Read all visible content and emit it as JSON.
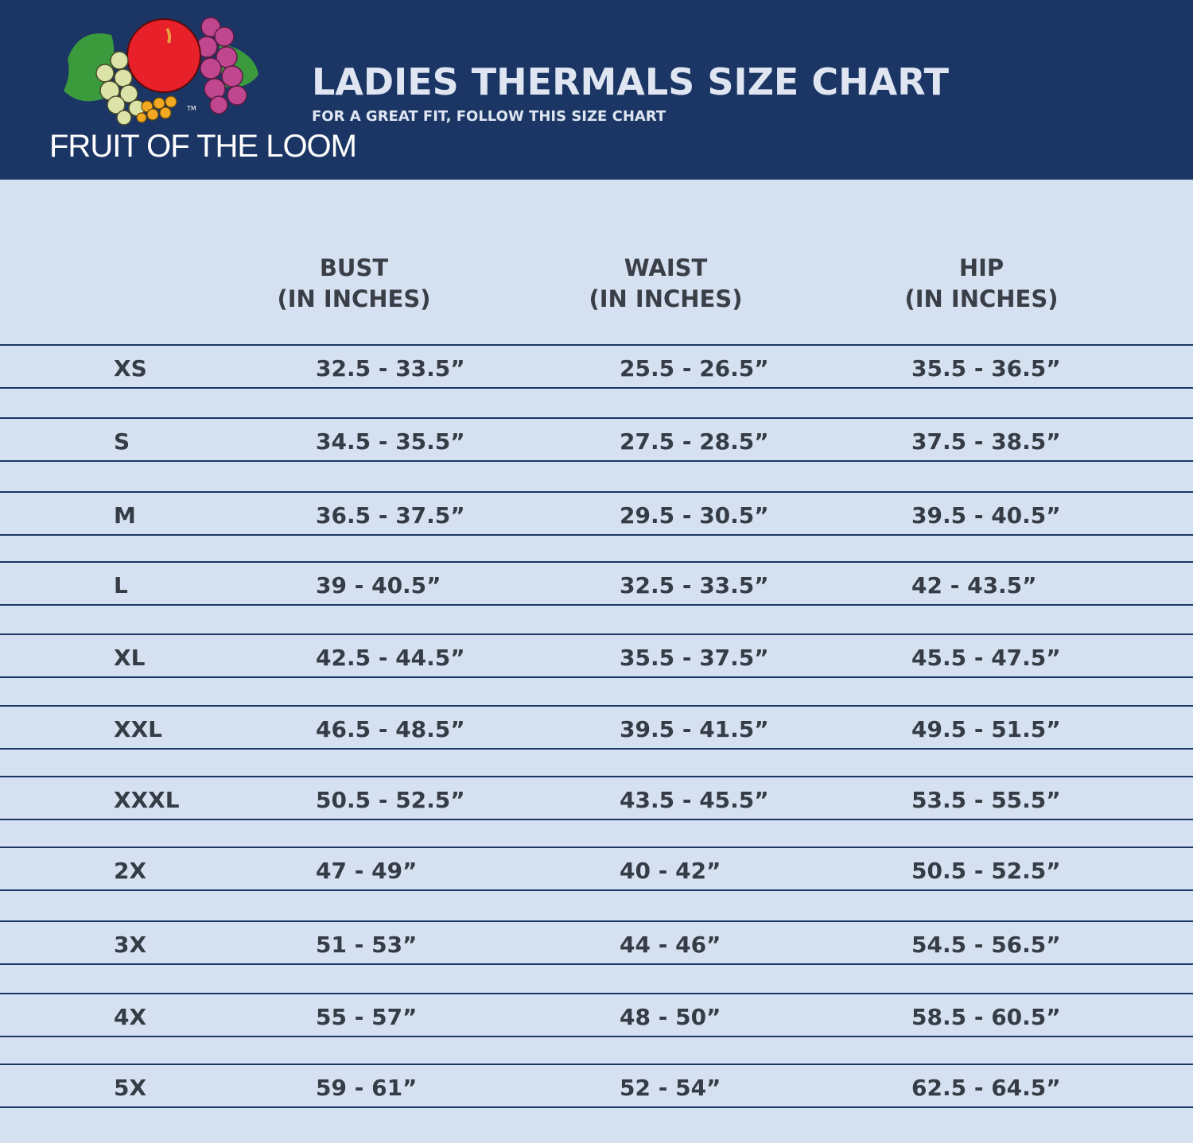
{
  "header": {
    "brand": "FRUIT OF THE LOOM",
    "title": "LADIES THERMALS SIZE CHART",
    "subtitle": "FOR A GREAT FIT, FOLLOW THIS SIZE CHART",
    "bg_color": "#1b3664"
  },
  "table": {
    "columns": [
      {
        "line1": "BUST",
        "line2": "(IN INCHES)"
      },
      {
        "line1": "WAIST",
        "line2": "(IN INCHES)"
      },
      {
        "line1": "HIP",
        "line2": "(IN INCHES)"
      }
    ],
    "rows": [
      {
        "size": "XS",
        "bust": "32.5 - 33.5”",
        "waist": "25.5 - 26.5”",
        "hip": "35.5 - 36.5”"
      },
      {
        "size": "S",
        "bust": "34.5 - 35.5”",
        "waist": "27.5 - 28.5”",
        "hip": "37.5 - 38.5”"
      },
      {
        "size": "M",
        "bust": "36.5 - 37.5”",
        "waist": "29.5 - 30.5”",
        "hip": "39.5 - 40.5”"
      },
      {
        "size": "L",
        "bust": "39 - 40.5”",
        "waist": "32.5 - 33.5”",
        "hip": "42 - 43.5”"
      },
      {
        "size": "XL",
        "bust": "42.5 - 44.5”",
        "waist": "35.5 - 37.5”",
        "hip": "45.5 - 47.5”"
      },
      {
        "size": "XXL",
        "bust": "46.5 - 48.5”",
        "waist": "39.5 - 41.5”",
        "hip": "49.5 - 51.5”"
      },
      {
        "size": "XXXL",
        "bust": "50.5 - 52.5”",
        "waist": "43.5 - 45.5”",
        "hip": "53.5 - 55.5”"
      },
      {
        "size": "2X",
        "bust": "47 - 49”",
        "waist": "40 - 42”",
        "hip": "50.5 - 52.5”"
      },
      {
        "size": "3X",
        "bust": "51 - 53”",
        "waist": "44 - 46”",
        "hip": "54.5 - 56.5”"
      },
      {
        "size": "4X",
        "bust": "55 - 57”",
        "waist": "48 - 50”",
        "hip": "58.5 - 60.5”"
      },
      {
        "size": "5X",
        "bust": "59 - 61”",
        "waist": "52 - 54”",
        "hip": "62.5 - 64.5”"
      }
    ]
  }
}
